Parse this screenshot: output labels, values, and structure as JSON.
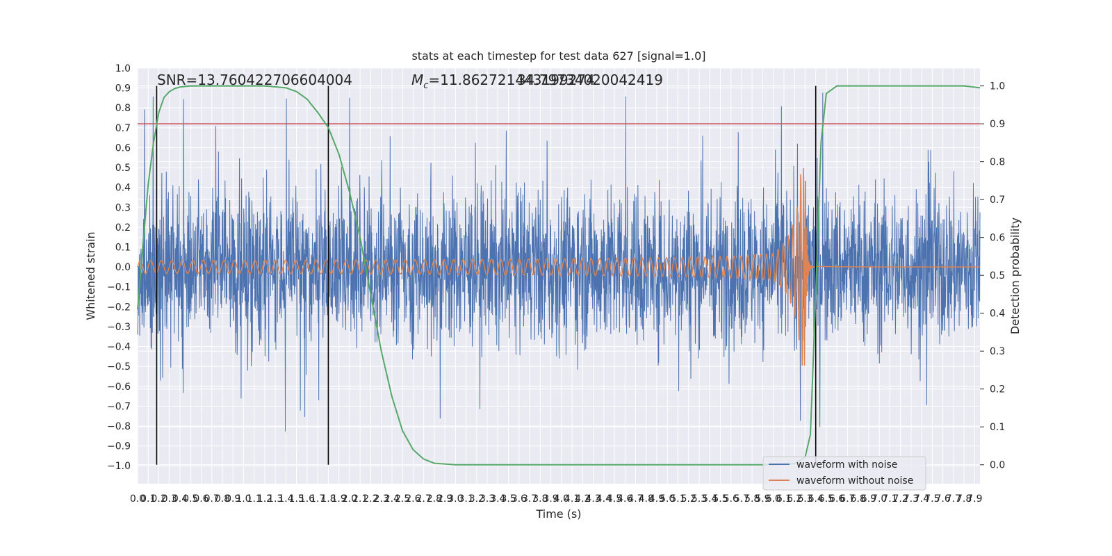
{
  "chart_data": {
    "type": "line",
    "title": "stats at each timestep for test data 627 [signal=1.0]",
    "xlabel": "Time (s)",
    "ylabel": "Whitened strain",
    "ylabel_right": "Detection probability",
    "xlim": [
      0.0,
      7.95
    ],
    "ylim": [
      -1.09,
      1.0
    ],
    "ylim_right": [
      -0.05,
      1.047
    ],
    "x_ticks": [
      0.0,
      0.1,
      0.2,
      0.3,
      0.4,
      0.5,
      0.6,
      0.7,
      0.8,
      0.9,
      1.0,
      1.1,
      1.2,
      1.3,
      1.4,
      1.5,
      1.6,
      1.7,
      1.8,
      1.9,
      2.0,
      2.1,
      2.2,
      2.3,
      2.4,
      2.5,
      2.6,
      2.7,
      2.8,
      2.9,
      3.0,
      3.1,
      3.2,
      3.3,
      3.4,
      3.5,
      3.6,
      3.7,
      3.8,
      3.9,
      4.0,
      4.1,
      4.2,
      4.3,
      4.4,
      4.5,
      4.6,
      4.7,
      4.8,
      4.9,
      5.0,
      5.1,
      5.2,
      5.3,
      5.4,
      5.5,
      5.6,
      5.7,
      5.8,
      5.9,
      6.0,
      6.1,
      6.2,
      6.3,
      6.4,
      6.5,
      6.6,
      6.7,
      6.8,
      6.9,
      7.0,
      7.1,
      7.2,
      7.3,
      7.4,
      7.5,
      7.6,
      7.7,
      7.8,
      7.9
    ],
    "y_ticks": [
      "1.0",
      "0.9",
      "0.8",
      "0.7",
      "0.6",
      "0.5",
      "0.4",
      "0.3",
      "0.2",
      "0.1",
      "0.0",
      "−0.1",
      "−0.2",
      "−0.3",
      "−0.4",
      "−0.5",
      "−0.6",
      "−0.7",
      "−0.8",
      "−0.9",
      "−1.0"
    ],
    "y_tick_values": [
      1.0,
      0.9,
      0.8,
      0.7,
      0.6,
      0.5,
      0.4,
      0.3,
      0.2,
      0.1,
      0.0,
      -0.1,
      -0.2,
      -0.3,
      -0.4,
      -0.5,
      -0.6,
      -0.7,
      -0.8,
      -0.9,
      -1.0
    ],
    "y2_ticks": [
      "1.0",
      "0.9",
      "0.8",
      "0.7",
      "0.6",
      "0.5",
      "0.4",
      "0.3",
      "0.2",
      "0.1",
      "0.0"
    ],
    "y2_tick_values": [
      1.0,
      0.9,
      0.8,
      0.7,
      0.6,
      0.5,
      0.4,
      0.3,
      0.2,
      0.1,
      0.0
    ],
    "annotations": {
      "snr": "SNR=13.760422706604004",
      "mc_prefix": "M",
      "mc_subscript": "c",
      "mc_value": "=11.862721443199274",
      "mc_overlap": "34.79734020042419"
    },
    "threshold_right": 0.9,
    "vertical_lines_x": [
      0.18,
      1.8,
      6.4
    ],
    "merger_time": 6.3,
    "noise_envelope": {
      "typical": 0.45,
      "max_spike": 0.9
    },
    "series": [
      {
        "name": "waveform with noise",
        "color": "#4c72b0"
      },
      {
        "name": "waveform without noise",
        "color": "#dd8452"
      },
      {
        "name": "detection probability",
        "color": "#55a868",
        "x": [
          0.0,
          0.05,
          0.1,
          0.15,
          0.2,
          0.25,
          0.3,
          0.35,
          0.4,
          0.5,
          0.6,
          0.8,
          1.0,
          1.2,
          1.4,
          1.5,
          1.6,
          1.7,
          1.8,
          1.9,
          2.0,
          2.1,
          2.2,
          2.3,
          2.4,
          2.5,
          2.6,
          2.7,
          2.8,
          3.0,
          3.5,
          4.0,
          5.0,
          6.0,
          6.2,
          6.3,
          6.35,
          6.4,
          6.45,
          6.5,
          6.6,
          6.8,
          7.0,
          7.5,
          7.8,
          7.95
        ],
        "y": [
          0.41,
          0.58,
          0.74,
          0.85,
          0.93,
          0.97,
          0.985,
          0.993,
          0.997,
          1.0,
          1.0,
          1.0,
          1.0,
          1.0,
          0.995,
          0.985,
          0.965,
          0.93,
          0.89,
          0.82,
          0.72,
          0.6,
          0.45,
          0.3,
          0.18,
          0.09,
          0.04,
          0.015,
          0.004,
          0.0,
          0.0,
          0.0,
          0.0,
          0.0,
          0.003,
          0.02,
          0.08,
          0.45,
          0.85,
          0.98,
          1.0,
          1.0,
          1.0,
          1.0,
          1.0,
          0.995
        ]
      },
      {
        "name": "threshold",
        "color": "#c44e52"
      }
    ],
    "legend": {
      "position": "lower-right",
      "entries": [
        "waveform with noise",
        "waveform without noise"
      ]
    }
  },
  "colors": {
    "plot_bg": "#eaeaf2",
    "grid": "#ffffff",
    "noise": "#4c72b0",
    "clean": "#dd8452",
    "prob": "#55a868",
    "threshold": "#c44e52",
    "vline": "#000000"
  }
}
